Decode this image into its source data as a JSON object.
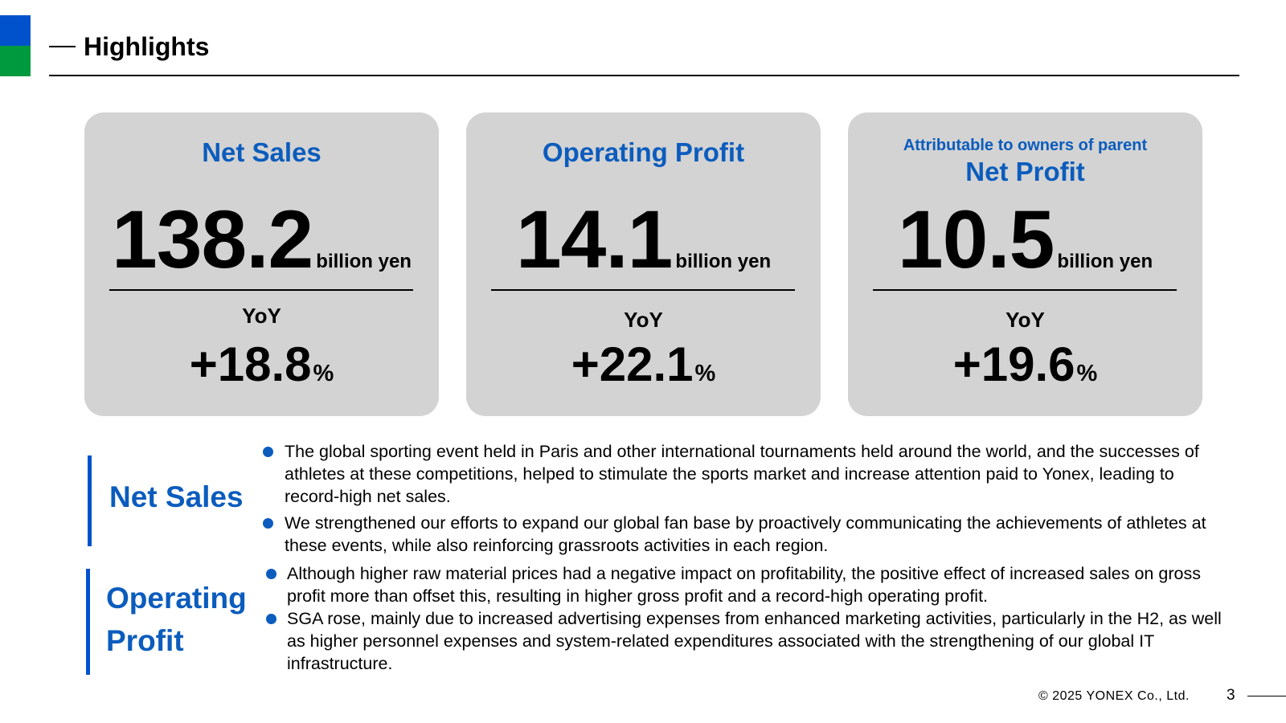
{
  "header": {
    "title": "Highlights"
  },
  "cards": [
    {
      "kicker": "",
      "label": "Net Sales",
      "value": "138.2",
      "unit": "billion yen",
      "yoy_label": "YoY",
      "yoy_value": "+18.8",
      "yoy_unit": "%"
    },
    {
      "kicker": "",
      "label": "Operating Profit",
      "value": "14.1",
      "unit": "billion yen",
      "yoy_label": "YoY",
      "yoy_value": "+22.1",
      "yoy_unit": "%"
    },
    {
      "kicker": "Attributable to owners of parent",
      "label": "Net Profit",
      "value": "10.5",
      "unit": "billion yen",
      "yoy_label": "YoY",
      "yoy_value": "+19.6",
      "yoy_unit": "%"
    }
  ],
  "sections": {
    "net_sales": {
      "title": "Net Sales",
      "bullets": [
        "The global sporting event held in Paris and other international tournaments held around the world, and the successes of athletes at these competitions, helped to stimulate the sports market and increase attention paid to Yonex, leading to record-high net sales.",
        "We strengthened our efforts to expand our global fan base by proactively communicating the achievements of athletes at these events, while also reinforcing grassroots activities in each region."
      ]
    },
    "operating_profit": {
      "title_line1": "Operating",
      "title_line2": "Profit",
      "bullets": [
        "Although higher raw material prices had a negative impact on profitability, the positive effect of increased sales on gross profit more than offset this, resulting in higher gross profit and a record-high operating profit.",
        "SGA rose, mainly due to increased advertising expenses from enhanced marketing activities, particularly in the H2, as well as higher personnel expenses and system-related expenditures associated with the strengthening of our global IT infrastructure."
      ]
    }
  },
  "footer": {
    "copyright": "© 2025 YONEX Co., Ltd.",
    "page_number": "3"
  },
  "colors": {
    "brand_blue": "#0052cc",
    "brand_green": "#009a3e",
    "label_blue": "#0b5cbd",
    "card_gray": "#d3d3d3"
  }
}
